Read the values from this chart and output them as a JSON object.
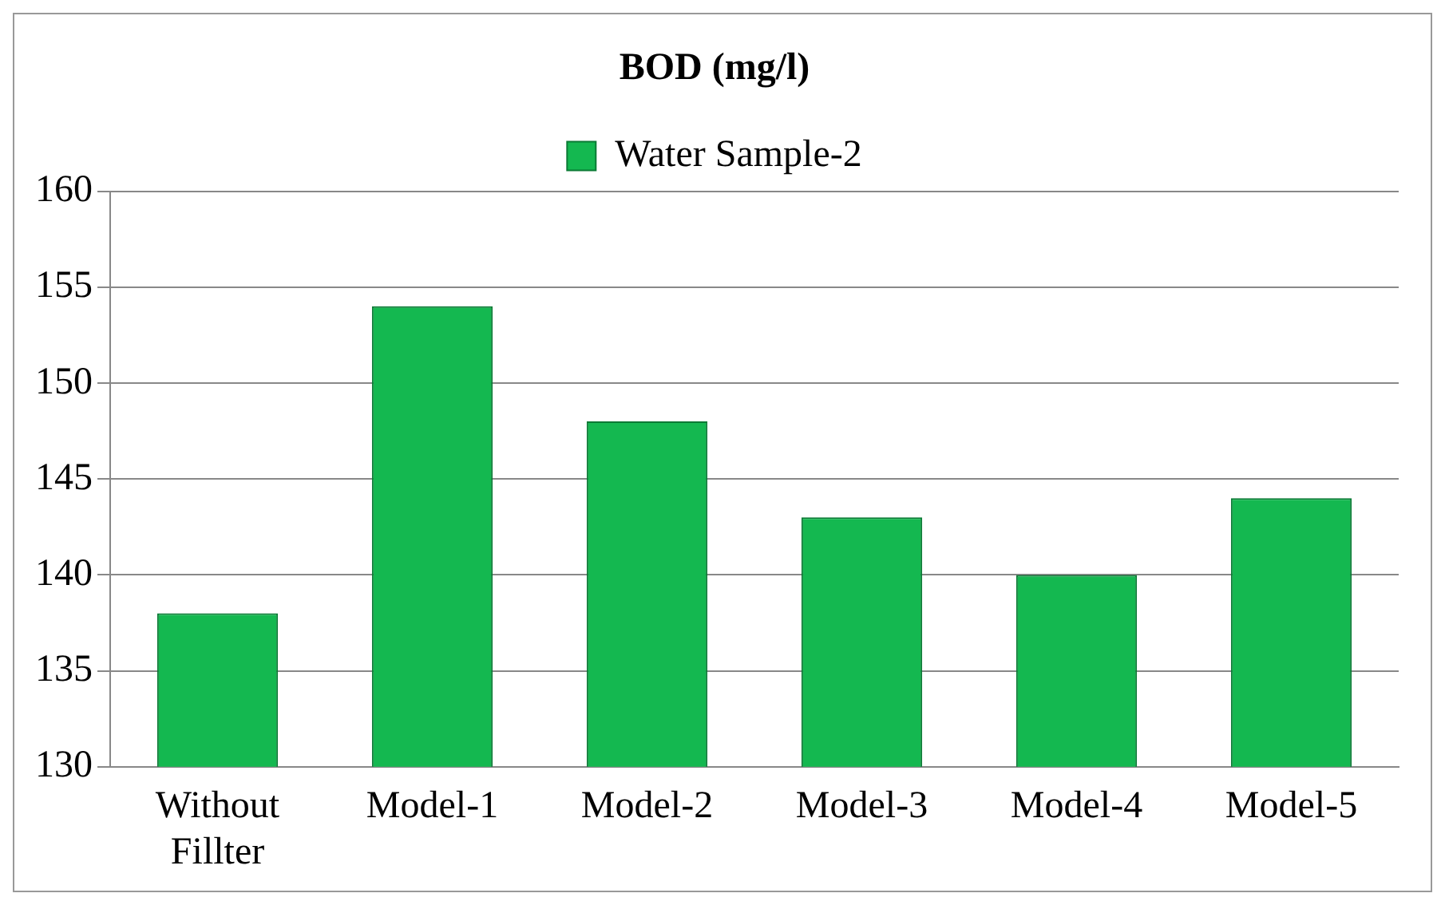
{
  "chart_data": {
    "type": "bar",
    "title": "BOD (mg/l)",
    "categories": [
      "Without Fillter",
      "Model-1",
      "Model-2",
      "Model-3",
      "Model-4",
      "Model-5"
    ],
    "series": [
      {
        "name": "Water Sample-2",
        "color": "#14b850",
        "values": [
          138,
          154,
          148,
          143,
          140,
          144
        ]
      }
    ],
    "ylim": [
      130,
      160
    ],
    "yticks": [
      130,
      135,
      140,
      145,
      150,
      155,
      160
    ],
    "grid": "y",
    "legend": "top"
  }
}
